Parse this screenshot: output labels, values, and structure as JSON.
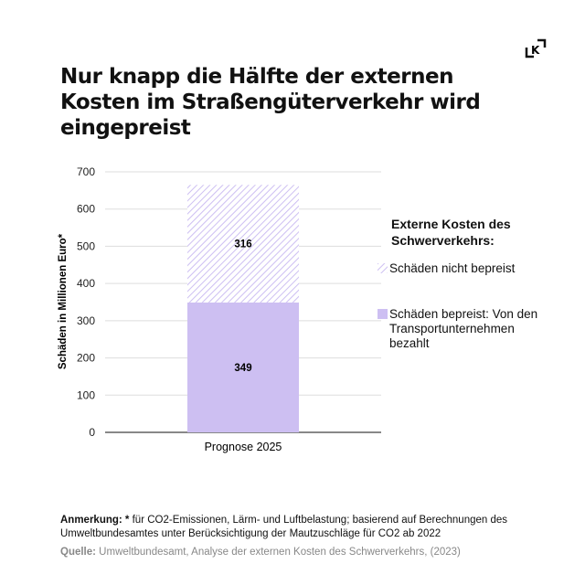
{
  "title": "Nur knapp die Hälfte der externen Kosten im Straßengüterverkehr wird eingepreist",
  "logo": "K",
  "chart_data": {
    "type": "bar",
    "stacked": true,
    "categories": [
      "Prognose 2025"
    ],
    "series": [
      {
        "name": "Schäden bepreist: Von den Transportunternehmen bezahlt",
        "values": [
          349
        ],
        "color": "#cdbff2",
        "pattern": "solid"
      },
      {
        "name": "Schäden nicht bepreist",
        "values": [
          316
        ],
        "color": "#cdbff2",
        "pattern": "hatched"
      }
    ],
    "ylabel": "Schäden in Millionen Euro*",
    "xlabel": "",
    "ylim": [
      0,
      700
    ],
    "yticks": [
      0,
      100,
      200,
      300,
      400,
      500,
      600,
      700
    ],
    "legend_title": "Externe Kosten des Schwerverkehrs:",
    "legend_position": "right",
    "grid": true
  },
  "note_label": "Anmerkung: *",
  "note_text": " für CO2-Emissionen, Lärm- und Luftbelastung; basierend auf Berechnungen des Umweltbundesamtes unter Berücksichtigung der Mautzuschläge für CO2 ab 2022",
  "source_label": "Quelle:",
  "source_text": " Umweltbundesamt, Analyse der externen Kosten des Schwerverkehrs, (2023)"
}
